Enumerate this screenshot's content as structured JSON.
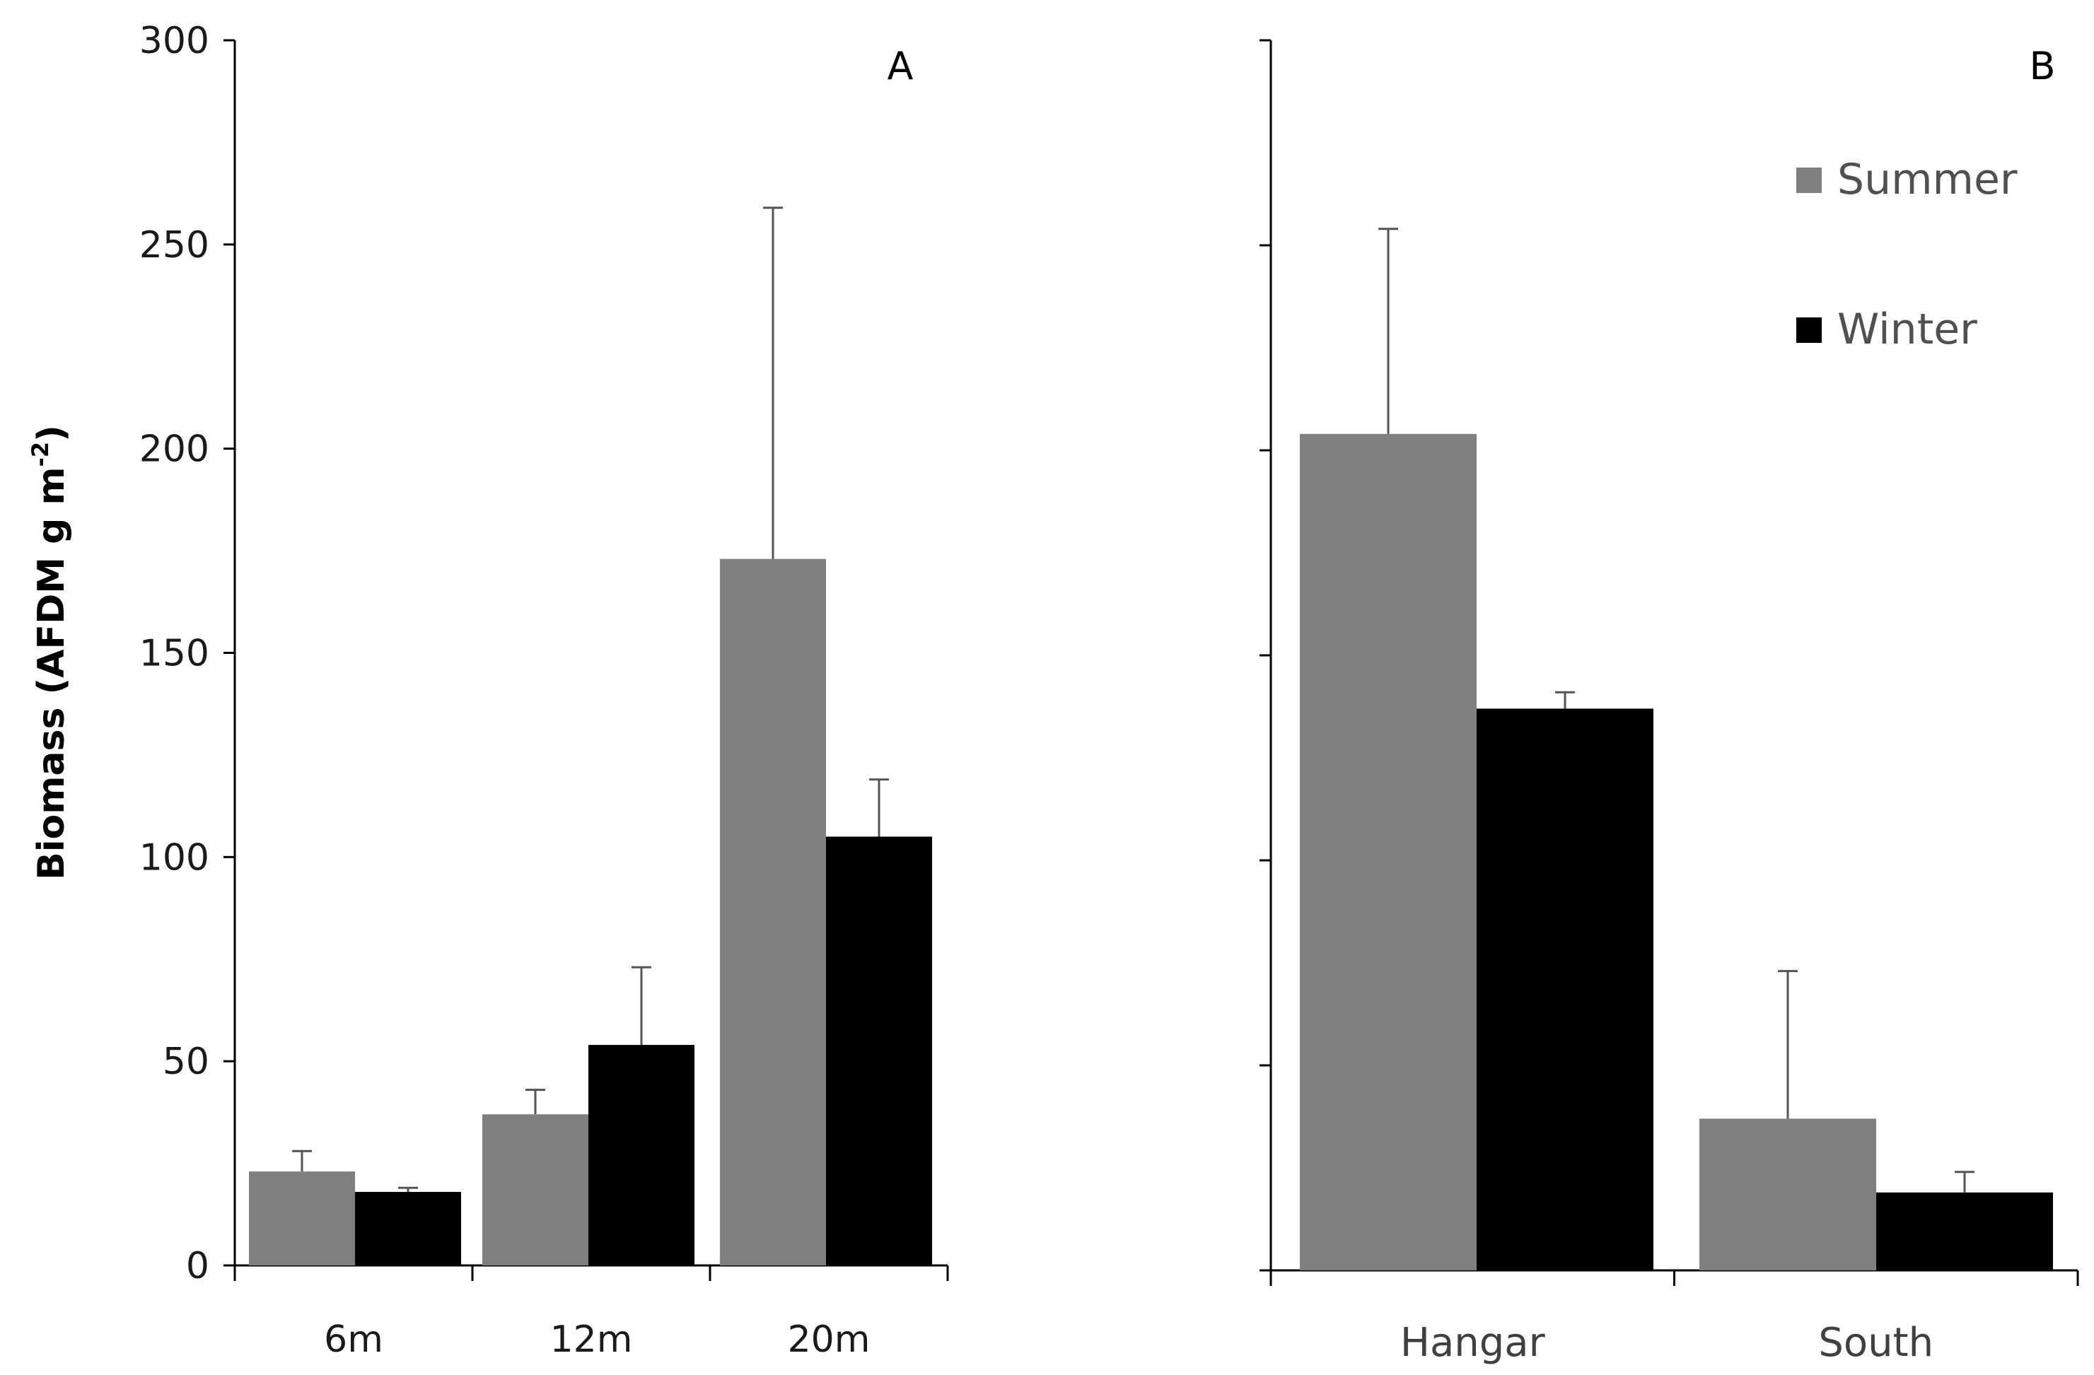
{
  "chart_data": [
    {
      "type": "bar",
      "panel": "A",
      "categories": [
        "6m",
        "12m",
        "20m"
      ],
      "series": [
        {
          "name": "Summer",
          "color": "#7f7f7f",
          "values": [
            23,
            37,
            173
          ],
          "errors": [
            5,
            6,
            86
          ]
        },
        {
          "name": "Winter",
          "color": "#000000",
          "values": [
            18,
            54,
            105
          ],
          "errors": [
            1,
            19,
            14
          ]
        }
      ],
      "ylabel": "Biomass (AFDM g m",
      "ylabel_sup": "-2",
      "ylabel_close": ")",
      "ylim": [
        0,
        300
      ],
      "yticks": [
        "0",
        "50",
        "100",
        "150",
        "200",
        "250",
        "300"
      ],
      "grid": false
    },
    {
      "type": "bar",
      "panel": "B",
      "categories": [
        "Hangar",
        "South"
      ],
      "series": [
        {
          "name": "Summer",
          "color": "#7f7f7f",
          "values": [
            204,
            37
          ],
          "errors": [
            50,
            36
          ]
        },
        {
          "name": "Winter",
          "color": "#000000",
          "values": [
            137,
            19
          ],
          "errors": [
            4,
            5
          ]
        }
      ],
      "ylim": [
        0,
        300
      ],
      "legend": {
        "position": "top-right",
        "entries": [
          "Summer",
          "Winter"
        ]
      },
      "grid": false
    }
  ]
}
